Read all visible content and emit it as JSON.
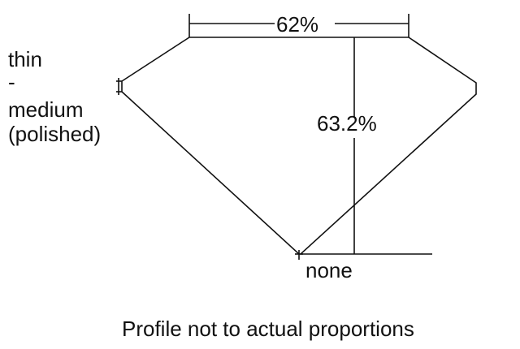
{
  "girdle_label": [
    "thin",
    "-",
    "medium",
    "(polished)"
  ],
  "table_label": "62%",
  "depth_label": "63.2%",
  "culet_label": "none",
  "caption": "Profile not to actual proportions"
}
